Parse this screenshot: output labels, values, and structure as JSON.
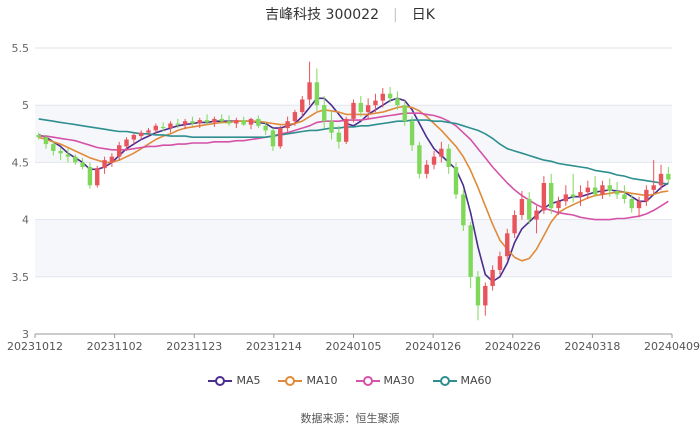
{
  "title": {
    "name": "吉峰科技 300022",
    "period": "日K"
  },
  "source_label": "数据来源：",
  "source_value": "恒生聚源",
  "chart_data": {
    "type": "candlestick",
    "ylim": [
      3,
      5.5
    ],
    "yticks": [
      "3",
      "3.5",
      "4",
      "4.5",
      "5",
      "5.5"
    ],
    "xticks": [
      "20231012",
      "20231102",
      "20231123",
      "20231214",
      "20240105",
      "20240126",
      "20240226",
      "20240318",
      "20240409"
    ],
    "grid": true,
    "legend_position": "bottom",
    "colors": {
      "up": "#e8545b",
      "down": "#7fd85a"
    },
    "legend": [
      {
        "name": "MA5",
        "color": "#4b2d8f"
      },
      {
        "name": "MA10",
        "color": "#e08a3a"
      },
      {
        "name": "MA30",
        "color": "#d452a7"
      },
      {
        "name": "MA60",
        "color": "#2f8f8f"
      }
    ],
    "candles": [
      [
        4.74,
        4.76,
        4.7,
        4.72
      ],
      [
        4.72,
        4.74,
        4.62,
        4.66
      ],
      [
        4.66,
        4.68,
        4.56,
        4.6
      ],
      [
        4.6,
        4.63,
        4.52,
        4.58
      ],
      [
        4.57,
        4.62,
        4.5,
        4.55
      ],
      [
        4.55,
        4.57,
        4.48,
        4.5
      ],
      [
        4.5,
        4.54,
        4.44,
        4.46
      ],
      [
        4.46,
        4.5,
        4.27,
        4.3
      ],
      [
        4.3,
        4.47,
        4.28,
        4.45
      ],
      [
        4.45,
        4.55,
        4.4,
        4.52
      ],
      [
        4.5,
        4.58,
        4.46,
        4.55
      ],
      [
        4.55,
        4.68,
        4.52,
        4.65
      ],
      [
        4.64,
        4.72,
        4.6,
        4.7
      ],
      [
        4.7,
        4.76,
        4.66,
        4.74
      ],
      [
        4.73,
        4.78,
        4.7,
        4.76
      ],
      [
        4.76,
        4.8,
        4.73,
        4.78
      ],
      [
        4.78,
        4.84,
        4.75,
        4.82
      ],
      [
        4.81,
        4.85,
        4.77,
        4.8
      ],
      [
        4.8,
        4.86,
        4.76,
        4.84
      ],
      [
        4.84,
        4.88,
        4.8,
        4.83
      ],
      [
        4.83,
        4.88,
        4.79,
        4.86
      ],
      [
        4.86,
        4.9,
        4.82,
        4.84
      ],
      [
        4.84,
        4.89,
        4.8,
        4.87
      ],
      [
        4.87,
        4.92,
        4.83,
        4.85
      ],
      [
        4.85,
        4.9,
        4.81,
        4.88
      ],
      [
        4.88,
        4.92,
        4.84,
        4.86
      ],
      [
        4.86,
        4.91,
        4.82,
        4.84
      ],
      [
        4.84,
        4.89,
        4.8,
        4.87
      ],
      [
        4.87,
        4.9,
        4.82,
        4.83
      ],
      [
        4.83,
        4.89,
        4.79,
        4.88
      ],
      [
        4.88,
        4.91,
        4.8,
        4.82
      ],
      [
        4.82,
        4.86,
        4.74,
        4.78
      ],
      [
        4.78,
        4.8,
        4.6,
        4.64
      ],
      [
        4.64,
        4.82,
        4.62,
        4.8
      ],
      [
        4.8,
        4.9,
        4.76,
        4.86
      ],
      [
        4.86,
        4.96,
        4.82,
        4.94
      ],
      [
        4.94,
        5.08,
        4.9,
        5.05
      ],
      [
        5.05,
        5.38,
        5.0,
        5.2
      ],
      [
        5.2,
        5.32,
        4.95,
        5.0
      ],
      [
        5.0,
        5.08,
        4.8,
        4.86
      ],
      [
        4.86,
        4.95,
        4.7,
        4.76
      ],
      [
        4.76,
        4.82,
        4.62,
        4.68
      ],
      [
        4.68,
        4.9,
        4.66,
        4.88
      ],
      [
        4.88,
        5.05,
        4.85,
        5.02
      ],
      [
        5.02,
        5.08,
        4.9,
        4.94
      ],
      [
        4.94,
        5.06,
        4.88,
        5.0
      ],
      [
        5.0,
        5.1,
        4.94,
        5.04
      ],
      [
        5.04,
        5.15,
        4.98,
        5.1
      ],
      [
        5.1,
        5.16,
        5.02,
        5.06
      ],
      [
        5.06,
        5.12,
        4.96,
        5.0
      ],
      [
        5.0,
        5.04,
        4.82,
        4.86
      ],
      [
        4.86,
        4.9,
        4.6,
        4.65
      ],
      [
        4.65,
        4.68,
        4.36,
        4.4
      ],
      [
        4.4,
        4.52,
        4.36,
        4.48
      ],
      [
        4.48,
        4.6,
        4.44,
        4.55
      ],
      [
        4.55,
        4.68,
        4.5,
        4.62
      ],
      [
        4.62,
        4.66,
        4.4,
        4.46
      ],
      [
        4.46,
        4.5,
        4.18,
        4.22
      ],
      [
        4.22,
        4.26,
        3.9,
        3.95
      ],
      [
        3.95,
        3.98,
        3.4,
        3.5
      ],
      [
        3.5,
        3.55,
        3.12,
        3.25
      ],
      [
        3.25,
        3.45,
        3.16,
        3.42
      ],
      [
        3.42,
        3.6,
        3.38,
        3.56
      ],
      [
        3.56,
        3.72,
        3.52,
        3.68
      ],
      [
        3.68,
        3.92,
        3.65,
        3.88
      ],
      [
        3.88,
        4.08,
        3.84,
        4.04
      ],
      [
        4.04,
        4.25,
        4.0,
        4.18
      ],
      [
        4.18,
        4.24,
        3.96,
        4.0
      ],
      [
        4.0,
        4.12,
        3.88,
        4.08
      ],
      [
        4.08,
        4.38,
        4.05,
        4.32
      ],
      [
        4.32,
        4.4,
        4.05,
        4.1
      ],
      [
        4.1,
        4.2,
        4.04,
        4.16
      ],
      [
        4.16,
        4.3,
        4.12,
        4.22
      ],
      [
        4.22,
        4.4,
        4.15,
        4.2
      ],
      [
        4.2,
        4.3,
        4.12,
        4.24
      ],
      [
        4.24,
        4.34,
        4.18,
        4.28
      ],
      [
        4.28,
        4.38,
        4.2,
        4.22
      ],
      [
        4.22,
        4.34,
        4.18,
        4.3
      ],
      [
        4.3,
        4.36,
        4.2,
        4.25
      ],
      [
        4.25,
        4.33,
        4.18,
        4.22
      ],
      [
        4.22,
        4.3,
        4.14,
        4.18
      ],
      [
        4.18,
        4.22,
        4.06,
        4.1
      ],
      [
        4.1,
        4.2,
        4.02,
        4.16
      ],
      [
        4.16,
        4.3,
        4.12,
        4.26
      ],
      [
        4.26,
        4.52,
        4.22,
        4.3
      ],
      [
        4.3,
        4.48,
        4.26,
        4.4
      ],
      [
        4.4,
        4.46,
        4.32,
        4.35
      ]
    ],
    "ma5": [
      4.74,
      4.72,
      4.68,
      4.64,
      4.58,
      4.54,
      4.5,
      4.44,
      4.44,
      4.46,
      4.5,
      4.56,
      4.62,
      4.66,
      4.7,
      4.73,
      4.76,
      4.78,
      4.8,
      4.82,
      4.83,
      4.84,
      4.85,
      4.85,
      4.86,
      4.86,
      4.86,
      4.86,
      4.86,
      4.86,
      4.85,
      4.84,
      4.8,
      4.8,
      4.82,
      4.84,
      4.9,
      4.98,
      5.06,
      5.06,
      5.0,
      4.92,
      4.84,
      4.82,
      4.86,
      4.92,
      4.96,
      5.0,
      5.04,
      5.06,
      5.04,
      4.96,
      4.84,
      4.72,
      4.62,
      4.56,
      4.5,
      4.44,
      4.3,
      4.06,
      3.76,
      3.52,
      3.46,
      3.5,
      3.62,
      3.8,
      3.92,
      3.98,
      4.04,
      4.1,
      4.14,
      4.16,
      4.18,
      4.2,
      4.2,
      4.22,
      4.24,
      4.25,
      4.26,
      4.25,
      4.24,
      4.2,
      4.16,
      4.16,
      4.22,
      4.28,
      4.32
    ],
    "ma10": [
      4.72,
      4.7,
      4.68,
      4.66,
      4.63,
      4.6,
      4.57,
      4.54,
      4.52,
      4.5,
      4.5,
      4.52,
      4.55,
      4.58,
      4.62,
      4.66,
      4.7,
      4.73,
      4.75,
      4.78,
      4.8,
      4.81,
      4.82,
      4.83,
      4.84,
      4.85,
      4.85,
      4.86,
      4.86,
      4.86,
      4.86,
      4.85,
      4.84,
      4.83,
      4.83,
      4.84,
      4.86,
      4.9,
      4.94,
      4.96,
      4.95,
      4.94,
      4.92,
      4.92,
      4.92,
      4.92,
      4.93,
      4.94,
      4.96,
      4.98,
      4.99,
      4.98,
      4.95,
      4.9,
      4.84,
      4.78,
      4.71,
      4.64,
      4.55,
      4.43,
      4.28,
      4.12,
      3.96,
      3.82,
      3.74,
      3.67,
      3.64,
      3.66,
      3.74,
      3.86,
      3.98,
      4.06,
      4.1,
      4.13,
      4.16,
      4.19,
      4.21,
      4.22,
      4.23,
      4.24,
      4.24,
      4.23,
      4.22,
      4.21,
      4.22,
      4.24,
      4.25
    ],
    "ma30": [
      4.73,
      4.73,
      4.72,
      4.71,
      4.7,
      4.69,
      4.67,
      4.65,
      4.63,
      4.62,
      4.61,
      4.61,
      4.61,
      4.62,
      4.63,
      4.64,
      4.64,
      4.65,
      4.65,
      4.66,
      4.66,
      4.67,
      4.67,
      4.67,
      4.68,
      4.68,
      4.68,
      4.69,
      4.69,
      4.7,
      4.71,
      4.72,
      4.73,
      4.75,
      4.76,
      4.78,
      4.8,
      4.82,
      4.85,
      4.86,
      4.86,
      4.86,
      4.87,
      4.87,
      4.87,
      4.88,
      4.89,
      4.9,
      4.91,
      4.92,
      4.93,
      4.93,
      4.93,
      4.92,
      4.91,
      4.89,
      4.86,
      4.82,
      4.76,
      4.7,
      4.62,
      4.54,
      4.46,
      4.39,
      4.32,
      4.26,
      4.21,
      4.17,
      4.13,
      4.1,
      4.08,
      4.06,
      4.05,
      4.04,
      4.02,
      4.01,
      4.0,
      4.0,
      4.0,
      4.01,
      4.01,
      4.02,
      4.03,
      4.05,
      4.08,
      4.12,
      4.16
    ],
    "ma60": [
      4.88,
      4.87,
      4.86,
      4.85,
      4.84,
      4.83,
      4.82,
      4.81,
      4.8,
      4.79,
      4.78,
      4.77,
      4.77,
      4.76,
      4.75,
      4.75,
      4.74,
      4.74,
      4.73,
      4.73,
      4.73,
      4.72,
      4.72,
      4.72,
      4.72,
      4.72,
      4.72,
      4.72,
      4.72,
      4.72,
      4.72,
      4.72,
      4.73,
      4.74,
      4.75,
      4.76,
      4.77,
      4.78,
      4.78,
      4.79,
      4.8,
      4.8,
      4.81,
      4.81,
      4.82,
      4.82,
      4.83,
      4.84,
      4.85,
      4.86,
      4.86,
      4.87,
      4.87,
      4.87,
      4.86,
      4.86,
      4.85,
      4.84,
      4.82,
      4.8,
      4.78,
      4.75,
      4.71,
      4.66,
      4.62,
      4.6,
      4.58,
      4.56,
      4.54,
      4.52,
      4.51,
      4.49,
      4.48,
      4.47,
      4.46,
      4.45,
      4.43,
      4.42,
      4.41,
      4.39,
      4.38,
      4.36,
      4.35,
      4.34,
      4.33,
      4.32,
      4.31
    ]
  }
}
